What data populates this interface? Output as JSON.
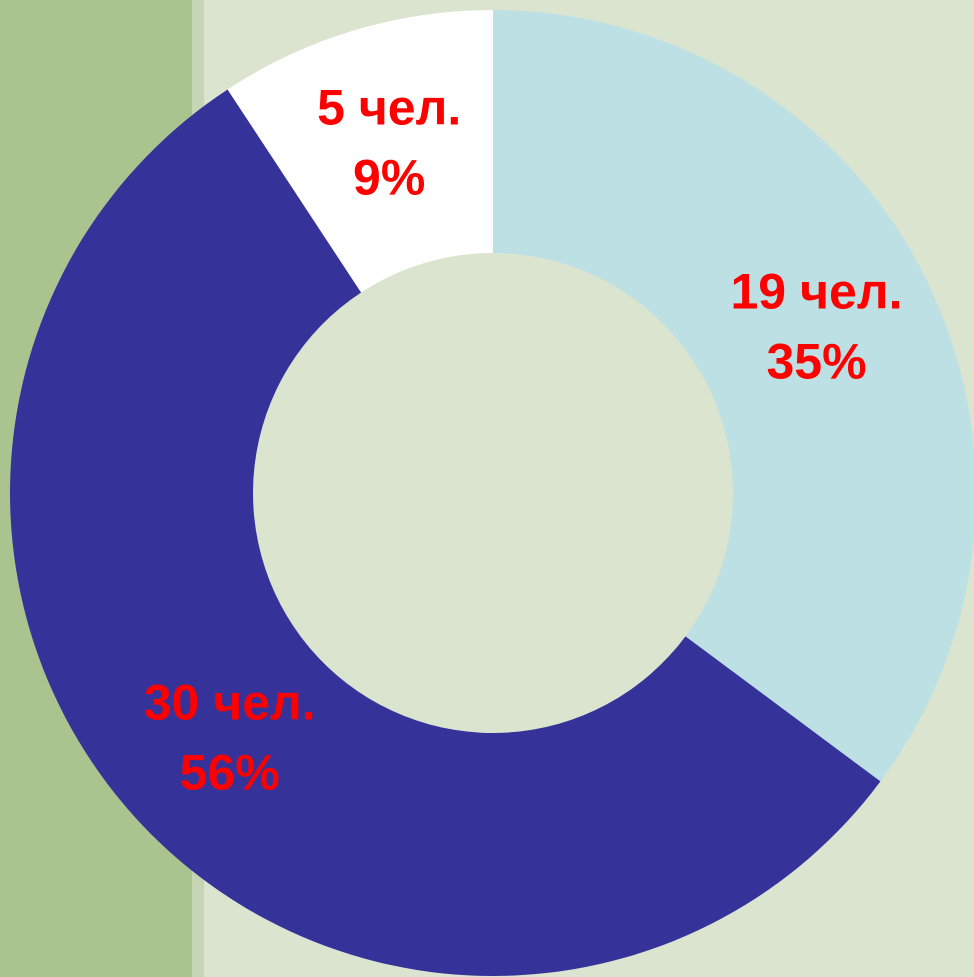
{
  "chart_data": {
    "type": "pie",
    "donut": true,
    "categories": [
      null,
      null,
      null
    ],
    "values": [
      19,
      30,
      5
    ],
    "value_labels": [
      "19 чел.",
      "30 чел.",
      "5 чел."
    ],
    "percent_labels": [
      "35%",
      "56%",
      "9%"
    ],
    "colors": [
      "#bde0e4",
      "#353399",
      "#ffffff"
    ],
    "label_color": "#ff0000"
  }
}
